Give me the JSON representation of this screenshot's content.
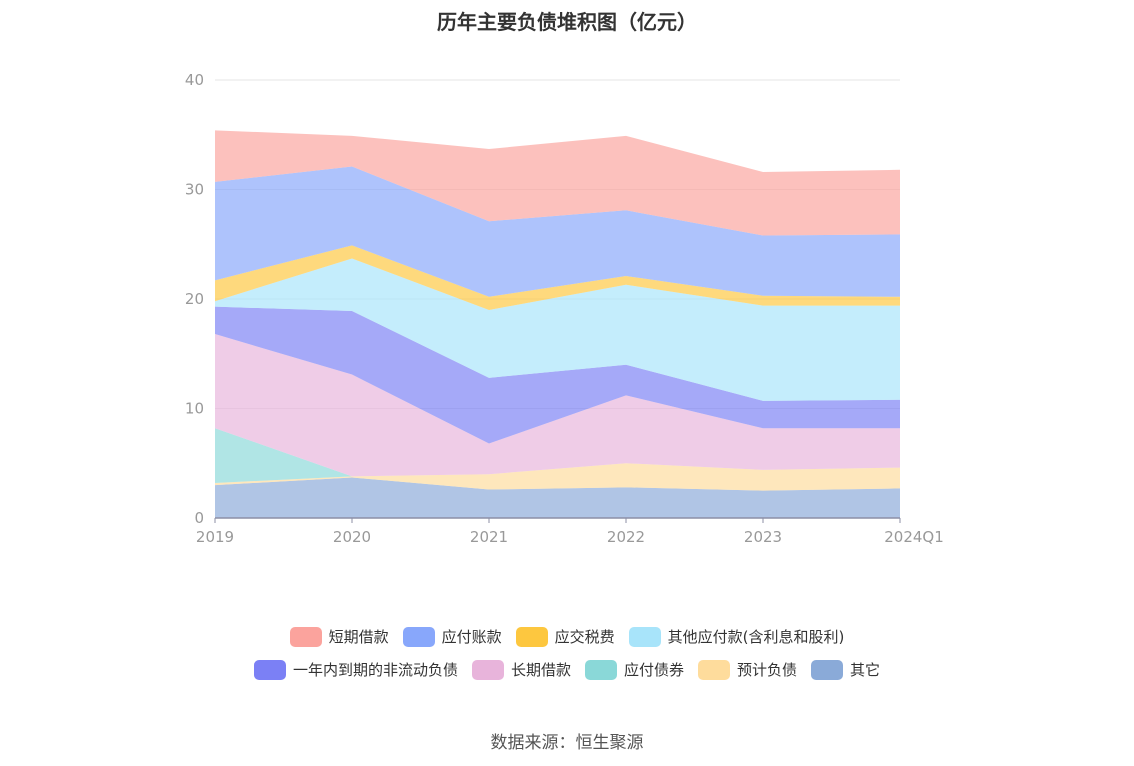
{
  "chart_data": {
    "type": "area",
    "stacked": true,
    "title": "历年主要负债堆积图（亿元）",
    "x": [
      "2019",
      "2020",
      "2021",
      "2022",
      "2023",
      "2024Q1"
    ],
    "ylim": [
      0,
      40
    ],
    "yticks": [
      0,
      10,
      20,
      30,
      40
    ],
    "grid": true,
    "legend_position": "bottom",
    "series": [
      {
        "name": "其它",
        "color": "#8aaad8",
        "values": [
          3.0,
          3.7,
          2.6,
          2.8,
          2.5,
          2.7
        ]
      },
      {
        "name": "预计负债",
        "color": "#fedc9c",
        "values": [
          0.2,
          0.1,
          1.4,
          2.2,
          1.9,
          1.9
        ]
      },
      {
        "name": "应付债券",
        "color": "#8ad8d8",
        "values": [
          5.0,
          0.0,
          0.0,
          0.0,
          0.0,
          0.0
        ]
      },
      {
        "name": "长期借款",
        "color": "#e8b4db",
        "values": [
          8.6,
          9.3,
          2.8,
          6.2,
          3.8,
          3.6
        ]
      },
      {
        "name": "一年内到期的非流动负债",
        "color": "#7b80f5",
        "values": [
          2.5,
          5.8,
          6.0,
          2.8,
          2.5,
          2.6
        ]
      },
      {
        "name": "其他应付款(含利息和股利)",
        "color": "#a8e4fa",
        "values": [
          0.5,
          4.8,
          6.2,
          7.3,
          8.7,
          8.6
        ]
      },
      {
        "name": "应交税费",
        "color": "#fdc73f",
        "values": [
          1.9,
          1.2,
          1.2,
          0.8,
          0.9,
          0.8
        ]
      },
      {
        "name": "应付账款",
        "color": "#88a7fb",
        "values": [
          9.0,
          7.2,
          6.9,
          6.0,
          5.5,
          5.7
        ]
      },
      {
        "name": "短期借款",
        "color": "#fba39d",
        "values": [
          4.7,
          2.8,
          6.6,
          6.8,
          5.8,
          5.9
        ]
      }
    ],
    "legend_order": [
      "短期借款",
      "应付账款",
      "应交税费",
      "其他应付款(含利息和股利)",
      "一年内到期的非流动负债",
      "长期借款",
      "应付债券",
      "预计负债",
      "其它"
    ]
  },
  "source": "数据来源：恒生聚源"
}
